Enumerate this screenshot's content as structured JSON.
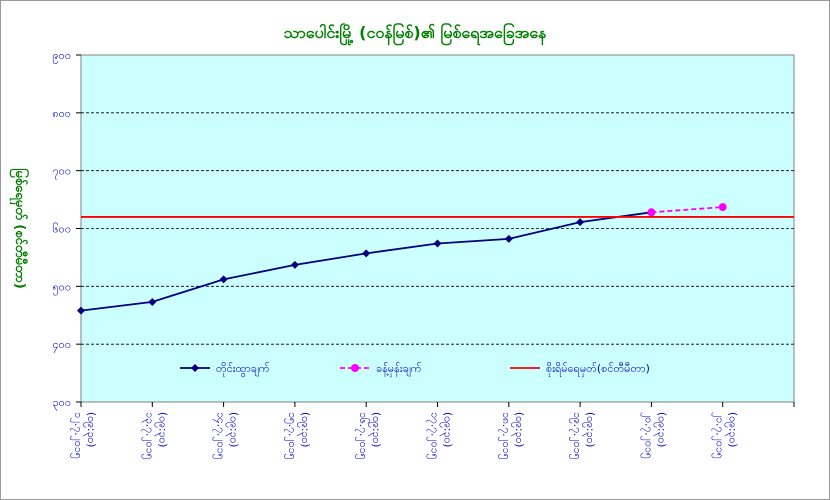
{
  "chart_data": {
    "type": "line",
    "title": "သာပေါင်းမြို့ (ငဝန်မြစ်)၏ မြစ်ရေအခြေအနေ",
    "ylabel": "မြစ်ရေမှတ် (စင်တီမီတာ)",
    "xlabel": "",
    "yticks": [
      "၉၀၀",
      "၈၀၀",
      "၇၀၀",
      "၆၀၀",
      "၅၀၀",
      "၄၀၀",
      "၃၀၀"
    ],
    "ylim": [
      300,
      900
    ],
    "categories": [
      [
        "၁၂.၇.၂၀၁၅",
        "(၀၉:၃၀)"
      ],
      [
        "၁၃.၇.၂၀၁၅",
        "(၀၉:၃၀)"
      ],
      [
        "၁၄.၇.၂၀၁၅",
        "(၀၉:၃၀)"
      ],
      [
        "၁၅.၇.၂၀၁၅",
        "(၀၉:၃၀)"
      ],
      [
        "၁၆.၇.၂၀၁၅",
        "(၀၉:၃၀)"
      ],
      [
        "၁၇.၇.၂၀၁၅",
        "(၀၉:၃၀)"
      ],
      [
        "၁၈.၇.၂၀၁၅",
        "(၀၉:၃၀)"
      ],
      [
        "၁၉.၇.၂၀၁၅",
        "(၀၉:၃၀)"
      ],
      [
        "၂၀.၇.၂၀၁၅",
        "(၀၉:၃၀)"
      ],
      [
        "၂၁.၇.၂၀၁၅",
        "(၀၉:၃၀)"
      ]
    ],
    "series": [
      {
        "name": "တိုင်းထွာချက်",
        "type": "line",
        "color": "#000080",
        "marker": "diamond",
        "values": [
          458,
          473,
          512,
          537,
          557,
          574,
          582,
          611,
          628,
          null
        ]
      },
      {
        "name": "ခန့်မှန်းချက်",
        "type": "dashed-line",
        "color": "#ff00ff",
        "marker": "circle",
        "values": [
          null,
          null,
          null,
          null,
          null,
          null,
          null,
          null,
          628,
          637
        ]
      },
      {
        "name": "စိုးရိမ်ရေမှတ်(စင်တီမီတာ)",
        "type": "reference-line",
        "color": "#ff0000",
        "value": 620
      }
    ],
    "grid": true,
    "plot_background": "#ccffff",
    "legend_position": "inside-bottom"
  }
}
